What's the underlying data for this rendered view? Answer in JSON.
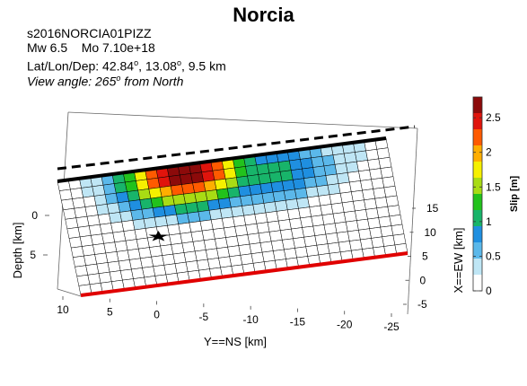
{
  "header": {
    "title": "Norcia",
    "event_id": "s2016NORCIA01PIZZ",
    "magnitude": "Mw 6.5",
    "moment": "Mo 7.10e+18",
    "location_prefix": "Lat/Lon/Dep: 42.84",
    "location_mid": ", 13.08",
    "location_suffix": ", 9.5 km",
    "degree_mark": "o",
    "view_prefix": "View angle: 265",
    "view_suffix": " from North"
  },
  "chart_data": {
    "type": "heatmap",
    "title": "Norcia",
    "axes": {
      "x": {
        "label": "Y==NS [km]",
        "ticks": [
          10,
          5,
          0,
          -5,
          -10,
          -15,
          -20,
          -25
        ]
      },
      "y": {
        "label": "X==EW [km]",
        "ticks": [
          15,
          10,
          5,
          0,
          -5
        ]
      },
      "z": {
        "label": "Depth [km]",
        "ticks": [
          0,
          5
        ]
      }
    },
    "colorbar": {
      "label": "Slip [m]",
      "ticks": [
        0,
        0.5,
        1,
        1.5,
        2,
        2.5
      ],
      "range": [
        0,
        2.8
      ],
      "colors": [
        "#ffffff",
        "#bfe6f5",
        "#5bb8ea",
        "#1f8fe0",
        "#18b46a",
        "#22c21c",
        "#a8dc14",
        "#f6f000",
        "#ffae00",
        "#ff5a00",
        "#e0140c",
        "#8c0a0a"
      ]
    },
    "grid": {
      "columns": 30,
      "rows": 12
    },
    "slip_peak": {
      "value": 2.8,
      "column": 11.5,
      "row": 1.0
    },
    "hypocenter": {
      "column": 8,
      "row": 7
    },
    "lines": {
      "top_edge": "black",
      "surface_trace": "black-dashed",
      "bottom_edge": "red"
    }
  }
}
